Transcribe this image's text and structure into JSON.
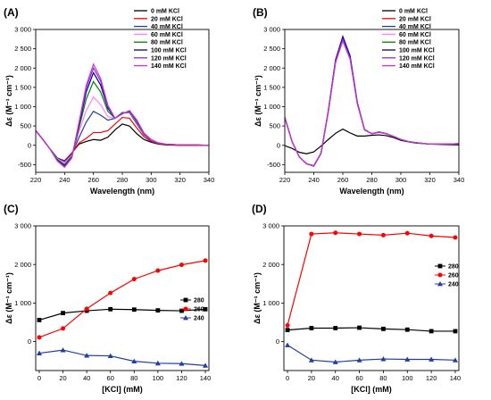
{
  "chart_data": [
    {
      "panel": "(A)",
      "type": "line",
      "xlabel": "Wavelength (nm)",
      "ylabel": "Δε (M⁻¹ cm⁻¹)",
      "xlim": [
        220,
        340
      ],
      "ylim": [
        -700,
        3000
      ],
      "xticks": [
        "220",
        "240",
        "260",
        "280",
        "300",
        "320",
        "340"
      ],
      "yticks": [
        "-500",
        "0",
        "500",
        "1 000",
        "1 500",
        "2 000",
        "2 500",
        "3 000"
      ],
      "legend_position": "top-right",
      "series": [
        {
          "name": "0 mM KCl",
          "color": "#000000",
          "x": [
            220,
            225,
            230,
            235,
            240,
            245,
            250,
            255,
            260,
            265,
            270,
            275,
            280,
            285,
            290,
            295,
            300,
            305,
            310,
            320,
            330,
            340
          ],
          "y": [
            380,
            150,
            -100,
            -330,
            -400,
            -200,
            30,
            100,
            150,
            130,
            210,
            400,
            550,
            500,
            300,
            150,
            80,
            30,
            10,
            0,
            0,
            0
          ]
        },
        {
          "name": "20 mM KCl",
          "color": "#ff0000",
          "x": [
            220,
            225,
            230,
            235,
            240,
            245,
            250,
            255,
            260,
            265,
            270,
            275,
            280,
            285,
            290,
            295,
            300,
            305,
            310,
            320,
            330,
            340
          ],
          "y": [
            380,
            150,
            -100,
            -330,
            -400,
            -200,
            60,
            180,
            330,
            330,
            380,
            550,
            720,
            700,
            450,
            220,
            100,
            40,
            20,
            0,
            0,
            0
          ]
        },
        {
          "name": "40 mM KCl",
          "color": "#1f3fa0",
          "x": [
            220,
            225,
            230,
            235,
            240,
            245,
            250,
            255,
            260,
            265,
            270,
            275,
            280,
            285,
            290,
            295,
            300,
            305,
            310,
            320,
            330,
            340
          ],
          "y": [
            380,
            150,
            -100,
            -330,
            -420,
            -230,
            200,
            600,
            880,
            780,
            650,
            700,
            850,
            840,
            560,
            270,
            120,
            50,
            30,
            10,
            10,
            0
          ]
        },
        {
          "name": "60 mM KCl",
          "color": "#ff80ff",
          "x": [
            220,
            225,
            230,
            235,
            240,
            245,
            250,
            255,
            260,
            265,
            270,
            275,
            280,
            285,
            290,
            295,
            300,
            305,
            310,
            320,
            330,
            340
          ],
          "y": [
            380,
            150,
            -100,
            -350,
            -460,
            -260,
            350,
            900,
            1250,
            1050,
            740,
            700,
            830,
            850,
            600,
            290,
            130,
            60,
            30,
            10,
            10,
            0
          ]
        },
        {
          "name": "80 mM KCl",
          "color": "#008000",
          "x": [
            220,
            225,
            230,
            235,
            240,
            245,
            250,
            255,
            260,
            265,
            270,
            275,
            280,
            285,
            290,
            295,
            300,
            305,
            310,
            320,
            330,
            340
          ],
          "y": [
            380,
            150,
            -100,
            -370,
            -500,
            -290,
            450,
            1200,
            1650,
            1380,
            880,
            700,
            830,
            870,
            620,
            300,
            140,
            60,
            30,
            10,
            10,
            0
          ]
        },
        {
          "name": "100 mM KCl",
          "color": "#00008b",
          "x": [
            220,
            225,
            230,
            235,
            240,
            245,
            250,
            255,
            260,
            265,
            270,
            275,
            280,
            285,
            290,
            295,
            300,
            305,
            310,
            320,
            330,
            340
          ],
          "y": [
            380,
            150,
            -100,
            -390,
            -530,
            -310,
            520,
            1380,
            1880,
            1560,
            960,
            700,
            820,
            880,
            640,
            310,
            140,
            60,
            30,
            10,
            10,
            0
          ]
        },
        {
          "name": "120 mM KCl",
          "color": "#8a2be2",
          "x": [
            220,
            225,
            230,
            235,
            240,
            245,
            250,
            255,
            260,
            265,
            270,
            275,
            280,
            285,
            290,
            295,
            300,
            305,
            310,
            320,
            330,
            340
          ],
          "y": [
            380,
            150,
            -100,
            -400,
            -550,
            -320,
            560,
            1480,
            2000,
            1660,
            1000,
            700,
            820,
            890,
            650,
            310,
            140,
            60,
            30,
            10,
            10,
            0
          ]
        },
        {
          "name": "140 mM KCl",
          "color": "#cc33cc",
          "x": [
            220,
            225,
            230,
            235,
            240,
            245,
            250,
            255,
            260,
            265,
            270,
            275,
            280,
            285,
            290,
            295,
            300,
            305,
            310,
            320,
            330,
            340
          ],
          "y": [
            380,
            150,
            -100,
            -410,
            -570,
            -330,
            600,
            1550,
            2100,
            1730,
            1040,
            700,
            810,
            900,
            660,
            320,
            150,
            60,
            30,
            10,
            10,
            0
          ]
        }
      ]
    },
    {
      "panel": "(B)",
      "type": "line",
      "xlabel": "Wavelength (nm)",
      "ylabel": "Δε (M⁻¹ cm⁻¹)",
      "xlim": [
        220,
        340
      ],
      "ylim": [
        -700,
        3000
      ],
      "xticks": [
        "220",
        "240",
        "260",
        "280",
        "300",
        "320",
        "340"
      ],
      "yticks": [
        "-500",
        "0",
        "500",
        "1 000",
        "1 500",
        "2 000",
        "2 500",
        "3 000"
      ],
      "legend_position": "top-right",
      "series": [
        {
          "name": "0 mM KCl",
          "color": "#000000",
          "x": [
            220,
            225,
            230,
            235,
            240,
            245,
            250,
            255,
            260,
            265,
            270,
            275,
            280,
            285,
            290,
            295,
            300,
            305,
            310,
            320,
            330,
            340
          ],
          "y": [
            -10,
            -80,
            -180,
            -220,
            -170,
            -20,
            150,
            310,
            420,
            320,
            240,
            240,
            260,
            270,
            250,
            200,
            130,
            90,
            60,
            30,
            20,
            10
          ]
        },
        {
          "name": "20 mM KCl",
          "color": "#ff0000",
          "x": [
            220,
            225,
            230,
            235,
            240,
            245,
            250,
            255,
            260,
            265,
            270,
            275,
            280,
            285,
            290,
            295,
            300,
            305,
            310,
            320,
            330,
            340
          ],
          "y": [
            720,
            100,
            -300,
            -480,
            -530,
            -200,
            900,
            2200,
            2780,
            2300,
            1100,
            400,
            300,
            350,
            300,
            230,
            150,
            100,
            70,
            30,
            30,
            40
          ]
        },
        {
          "name": "40 mM KCl",
          "color": "#1f3fa0",
          "x": [
            220,
            225,
            230,
            235,
            240,
            245,
            250,
            255,
            260,
            265,
            270,
            275,
            280,
            285,
            290,
            295,
            300,
            305,
            310,
            320,
            330,
            340
          ],
          "y": [
            720,
            100,
            -300,
            -480,
            -540,
            -210,
            890,
            2220,
            2820,
            2320,
            1110,
            410,
            300,
            340,
            300,
            230,
            150,
            100,
            70,
            30,
            30,
            40
          ]
        },
        {
          "name": "60 mM KCl",
          "color": "#ff80ff",
          "x": [
            220,
            225,
            230,
            235,
            240,
            245,
            250,
            255,
            260,
            265,
            270,
            275,
            280,
            285,
            290,
            295,
            300,
            305,
            310,
            320,
            330,
            340
          ],
          "y": [
            720,
            100,
            -300,
            -480,
            -530,
            -200,
            880,
            2180,
            2790,
            2290,
            1100,
            400,
            300,
            340,
            300,
            230,
            150,
            100,
            70,
            30,
            30,
            40
          ]
        },
        {
          "name": "80 mM KCl",
          "color": "#008000",
          "x": [
            220,
            225,
            230,
            235,
            240,
            245,
            250,
            255,
            260,
            265,
            270,
            275,
            280,
            285,
            290,
            295,
            300,
            305,
            310,
            320,
            330,
            340
          ],
          "y": [
            720,
            100,
            -300,
            -480,
            -530,
            -200,
            870,
            2160,
            2760,
            2270,
            1090,
            400,
            300,
            340,
            300,
            230,
            150,
            100,
            70,
            30,
            30,
            40
          ]
        },
        {
          "name": "100 mM KCl",
          "color": "#00008b",
          "x": [
            220,
            225,
            230,
            235,
            240,
            245,
            250,
            255,
            260,
            265,
            270,
            275,
            280,
            285,
            290,
            295,
            300,
            305,
            310,
            320,
            330,
            340
          ],
          "y": [
            720,
            100,
            -300,
            -480,
            -535,
            -205,
            880,
            2200,
            2810,
            2310,
            1100,
            400,
            300,
            340,
            300,
            230,
            150,
            100,
            70,
            30,
            30,
            40
          ]
        },
        {
          "name": "120 mM KCl",
          "color": "#8a2be2",
          "x": [
            220,
            225,
            230,
            235,
            240,
            245,
            250,
            255,
            260,
            265,
            270,
            275,
            280,
            285,
            290,
            295,
            300,
            305,
            310,
            320,
            330,
            340
          ],
          "y": [
            720,
            100,
            -300,
            -480,
            -530,
            -200,
            870,
            2170,
            2750,
            2260,
            1080,
            400,
            300,
            340,
            300,
            230,
            150,
            100,
            70,
            30,
            30,
            40
          ]
        },
        {
          "name": "140 mM KCl",
          "color": "#cc33cc",
          "x": [
            220,
            225,
            230,
            235,
            240,
            245,
            250,
            255,
            260,
            265,
            270,
            275,
            280,
            285,
            290,
            295,
            300,
            305,
            310,
            320,
            330,
            340
          ],
          "y": [
            720,
            100,
            -300,
            -480,
            -525,
            -195,
            860,
            2140,
            2700,
            2230,
            1070,
            400,
            300,
            340,
            300,
            230,
            150,
            100,
            70,
            30,
            30,
            40
          ]
        }
      ]
    },
    {
      "panel": "(C)",
      "type": "line",
      "xlabel": "[KCl] (mM)",
      "ylabel": "Δε (M⁻¹ cm⁻¹)",
      "xlim": [
        -3,
        143
      ],
      "ylim": [
        -750,
        3000
      ],
      "xticks": [
        "0",
        "20",
        "40",
        "60",
        "80",
        "100",
        "120",
        "140"
      ],
      "yticks": [
        "0",
        "1 000",
        "2 000",
        "3 000"
      ],
      "legend_position": "right",
      "series": [
        {
          "name": "280",
          "color": "#000000",
          "marker": "square",
          "x": [
            0,
            20,
            40,
            60,
            80,
            100,
            120,
            140
          ],
          "y": [
            560,
            740,
            800,
            840,
            830,
            810,
            800,
            840
          ]
        },
        {
          "name": "260",
          "color": "#ff0000",
          "marker": "circle",
          "x": [
            0,
            20,
            40,
            60,
            80,
            100,
            120,
            140
          ],
          "y": [
            110,
            340,
            850,
            1260,
            1620,
            1840,
            1990,
            2100
          ]
        },
        {
          "name": "240",
          "color": "#1f3fa0",
          "marker": "triangle",
          "x": [
            0,
            20,
            40,
            60,
            80,
            100,
            120,
            140
          ],
          "y": [
            -300,
            -220,
            -360,
            -370,
            -510,
            -560,
            -570,
            -620
          ]
        }
      ]
    },
    {
      "panel": "(D)",
      "type": "line",
      "xlabel": "[KCl] (mM)",
      "ylabel": "Δε (M⁻¹ cm⁻¹)",
      "xlim": [
        -3,
        143
      ],
      "ylim": [
        -750,
        3000
      ],
      "xticks": [
        "0",
        "20",
        "40",
        "60",
        "80",
        "100",
        "120",
        "140"
      ],
      "yticks": [
        "0",
        "1 000",
        "2 000",
        "3 000"
      ],
      "legend_position": "right",
      "series": [
        {
          "name": "280",
          "color": "#000000",
          "marker": "square",
          "x": [
            0,
            20,
            40,
            60,
            80,
            100,
            120,
            140
          ],
          "y": [
            300,
            350,
            350,
            360,
            330,
            310,
            270,
            270
          ]
        },
        {
          "name": "260",
          "color": "#ff0000",
          "marker": "circle",
          "x": [
            0,
            20,
            40,
            60,
            80,
            100,
            120,
            140
          ],
          "y": [
            420,
            2790,
            2820,
            2790,
            2760,
            2810,
            2740,
            2700
          ]
        },
        {
          "name": "240",
          "color": "#1f3fa0",
          "marker": "triangle",
          "x": [
            0,
            20,
            40,
            60,
            80,
            100,
            120,
            140
          ],
          "y": [
            -90,
            -480,
            -530,
            -480,
            -450,
            -460,
            -460,
            -480
          ]
        }
      ]
    }
  ]
}
